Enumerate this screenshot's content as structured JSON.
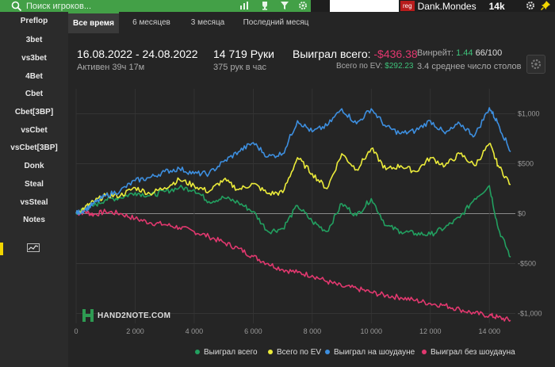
{
  "topbar": {
    "search_placeholder": "Поиск игроков...",
    "user": {
      "badge": "reg",
      "name": "Dank.Mondes",
      "count": "14k"
    }
  },
  "sidebar": {
    "items": [
      "Preflop",
      "3bet",
      "vs3bet",
      "4Bet",
      "Cbet",
      "Cbet[3BP]",
      "vsCbet",
      "vsCbet[3BP]",
      "Donk",
      "Steal",
      "vsSteal",
      "Notes"
    ]
  },
  "tabs": [
    "Все время",
    "6 месяцев",
    "3 месяца",
    "Последний месяц"
  ],
  "active_tab": "Все время",
  "stats": {
    "date_range": "16.08.2022 - 24.08.2022",
    "active_time": "Активен 39ч 17м",
    "hands": "14 719 Руки",
    "hands_per_hour": "375 рук в час",
    "won_label": "Выиграл всего:",
    "won_value": "-$436.38",
    "ev_label": "Всего по EV:",
    "ev_value": "$292.23",
    "winrate_label": "Винрейт:",
    "winrate_value": "1.44",
    "winrate_rest": "66/100",
    "tables": "3.4 среднее число столов"
  },
  "logo_text": "HAND2NOTE.COM",
  "colors": {
    "accent": "#43a047",
    "won": "#22a060",
    "ev": "#ecec3a",
    "showdown": "#3d8fe0",
    "nonshowdown": "#e2386f",
    "highlight": "#f2d600"
  },
  "chart_data": {
    "type": "line",
    "x_ticks": [
      "0",
      "2 000",
      "4 000",
      "6 000",
      "8 000",
      "10 000",
      "12 000",
      "14 000"
    ],
    "y_ticks": [
      "$1,000",
      "$500",
      "$0",
      "-$500",
      "-$1,000"
    ],
    "xlim": [
      0,
      14719
    ],
    "ylim": [
      -1100,
      1250
    ],
    "grid": true,
    "legend_position": "bottom",
    "series": [
      {
        "name": "Выиграл всего",
        "color": "#22a060",
        "x": [
          0,
          300,
          600,
          1000,
          1500,
          2000,
          2500,
          3000,
          3500,
          4000,
          4500,
          5000,
          5500,
          6000,
          6500,
          7000,
          7500,
          8000,
          8500,
          9000,
          9500,
          10000,
          10500,
          11000,
          11500,
          12000,
          12500,
          13000,
          13500,
          14000,
          14300,
          14719
        ],
        "y": [
          0,
          50,
          80,
          140,
          160,
          210,
          180,
          220,
          260,
          240,
          120,
          160,
          110,
          20,
          -180,
          -150,
          80,
          -80,
          -180,
          100,
          -20,
          150,
          -120,
          -180,
          -200,
          -210,
          -140,
          -40,
          150,
          280,
          -150,
          -436
        ]
      },
      {
        "name": "Всего по EV",
        "color": "#ecec3a",
        "x": [
          0,
          300,
          600,
          1000,
          1500,
          2000,
          2500,
          3000,
          3500,
          4000,
          4500,
          5000,
          5500,
          6000,
          6500,
          7000,
          7500,
          8000,
          8500,
          9000,
          9500,
          10000,
          10500,
          11000,
          11500,
          12000,
          12500,
          13000,
          13500,
          14000,
          14300,
          14719
        ],
        "y": [
          0,
          60,
          120,
          180,
          180,
          260,
          200,
          260,
          340,
          280,
          220,
          340,
          240,
          300,
          200,
          210,
          560,
          400,
          250,
          600,
          440,
          650,
          440,
          480,
          420,
          560,
          480,
          600,
          480,
          700,
          480,
          292
        ]
      },
      {
        "name": "Выиграл на шоудауне",
        "color": "#3d8fe0",
        "x": [
          0,
          300,
          600,
          1000,
          1500,
          2000,
          2500,
          3000,
          3500,
          4000,
          4500,
          5000,
          5500,
          6000,
          6500,
          7000,
          7500,
          8000,
          8500,
          9000,
          9500,
          10000,
          10500,
          11000,
          11500,
          12000,
          12500,
          13000,
          13500,
          14000,
          14300,
          14719
        ],
        "y": [
          0,
          40,
          100,
          180,
          230,
          330,
          360,
          420,
          450,
          400,
          400,
          520,
          620,
          710,
          570,
          600,
          930,
          820,
          880,
          1050,
          900,
          1050,
          870,
          800,
          830,
          930,
          800,
          900,
          780,
          1060,
          900,
          620
        ]
      },
      {
        "name": "Выиграл без шоудауна",
        "color": "#e2386f",
        "x": [
          0,
          300,
          600,
          1000,
          1500,
          2000,
          2500,
          3000,
          3500,
          4000,
          4500,
          5000,
          5500,
          6000,
          6500,
          7000,
          7500,
          8000,
          8500,
          9000,
          9500,
          10000,
          10500,
          11000,
          11500,
          12000,
          12500,
          13000,
          13500,
          14000,
          14300,
          14719
        ],
        "y": [
          0,
          20,
          -10,
          20,
          0,
          -50,
          -90,
          -110,
          -140,
          -180,
          -230,
          -290,
          -350,
          -430,
          -500,
          -560,
          -590,
          -620,
          -680,
          -730,
          -750,
          -790,
          -820,
          -840,
          -870,
          -900,
          -920,
          -960,
          -1000,
          -1020,
          -1040,
          -1070
        ]
      }
    ]
  }
}
